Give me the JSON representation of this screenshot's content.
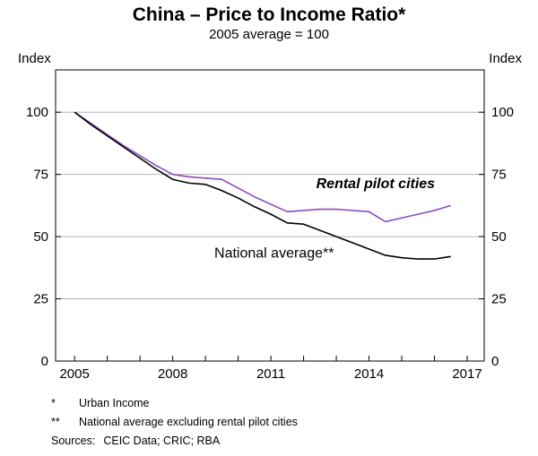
{
  "chart": {
    "title": "China – Price to Income Ratio*",
    "subtitle": "2005 average = 100",
    "index_left": "Index",
    "index_right": "Index"
  },
  "chart_data": {
    "type": "line",
    "title": "China – Price to Income Ratio*",
    "subtitle": "2005 average = 100",
    "ylabel": "Index",
    "ylim": [
      0,
      117
    ],
    "yticks": [
      0,
      25,
      50,
      75,
      100
    ],
    "xlim": [
      2004.42,
      2017.52
    ],
    "xticks": [
      2005,
      2006,
      2007,
      2008,
      2009,
      2010,
      2011,
      2012,
      2013,
      2014,
      2015,
      2016,
      2017
    ],
    "xtick_labels": [
      "2005",
      "2008",
      "2011",
      "2014",
      "2017"
    ],
    "grid": "horizontal",
    "grid_color": "#b3b3b3",
    "x": [
      2005,
      2005.5,
      2006,
      2006.5,
      2007,
      2007.5,
      2008,
      2008.5,
      2009,
      2009.5,
      2010,
      2010.5,
      2011,
      2011.5,
      2012,
      2012.5,
      2013,
      2013.5,
      2014,
      2014.5,
      2015,
      2015.5,
      2016,
      2016.5
    ],
    "series": [
      {
        "name": "Rental pilot cities",
        "color": "#8e4bbd",
        "values": [
          100,
          95.5,
          91,
          86.5,
          82.5,
          78.5,
          75,
          74,
          73.5,
          73,
          69.5,
          66,
          63,
          60,
          60.5,
          61,
          61,
          60.5,
          60,
          56,
          57.5,
          59,
          60.5,
          62.5
        ]
      },
      {
        "name": "National average**",
        "color": "#000000",
        "values": [
          100,
          95,
          90.5,
          86,
          81.5,
          77,
          73,
          71.5,
          71,
          68.5,
          65.5,
          62,
          59,
          55.5,
          55,
          52.5,
          50,
          47.5,
          45,
          42.5,
          41.5,
          41,
          41,
          42
        ]
      }
    ],
    "annotations": [
      {
        "text": "Rental pilot cities",
        "x": 2014.2,
        "y": 69.5,
        "color": "#8e4bbd",
        "italic": true,
        "bold": true
      },
      {
        "text": "National average**",
        "x": 2011.1,
        "y": 41.5,
        "color": "#000000",
        "italic": false,
        "bold": false
      }
    ]
  },
  "footnotes": [
    {
      "marker": "*",
      "text": "Urban Income"
    },
    {
      "marker": "**",
      "text": "National average excluding rental pilot cities"
    }
  ],
  "sources": {
    "label": "Sources:",
    "text": "CEIC Data; CRIC; RBA"
  }
}
